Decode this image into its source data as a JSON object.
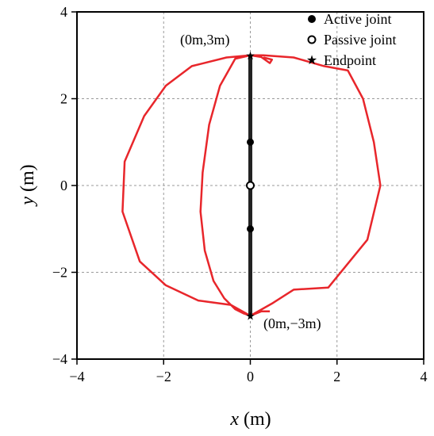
{
  "chart_data": {
    "type": "scatter",
    "title": "",
    "xlabel_var": "x",
    "xlabel_unit": "(m)",
    "ylabel_var": "y",
    "ylabel_unit": "(m)",
    "xlim": [
      -4,
      4
    ],
    "ylim": [
      -4,
      4
    ],
    "xticks": [
      -4,
      -2,
      0,
      2,
      4
    ],
    "yticks": [
      -4,
      -2,
      0,
      2,
      4
    ],
    "tick_labels_x": [
      "−4",
      "−2",
      "0",
      "2",
      "4"
    ],
    "tick_labels_y": [
      "−4",
      "−2",
      "0",
      "2",
      "4"
    ],
    "grid": true,
    "legend_position": "top-right",
    "colors": {
      "trajectory": "#e8262b",
      "link": "#222222",
      "grid": "#9a9a9a"
    },
    "trajectory": {
      "x": [
        0.3,
        0.5,
        0.45,
        0.25,
        0,
        -0.35,
        -0.7,
        -0.95,
        -1.1,
        -1.15,
        -1.05,
        -0.85,
        -0.6,
        -0.35,
        -0.15,
        0,
        0.5,
        1,
        1.8,
        2.7,
        3,
        2.85,
        2.6,
        2.25,
        1.7,
        1,
        0.3,
        0,
        -0.55,
        -1.35,
        -1.95,
        -2.45,
        -2.9,
        -2.95,
        -2.55,
        -1.95,
        -1.2,
        -0.45,
        0,
        0.25,
        0.45
      ],
      "y": [
        2.95,
        2.9,
        2.82,
        2.96,
        3,
        2.92,
        2.3,
        1.4,
        0.3,
        -0.6,
        -1.5,
        -2.2,
        -2.6,
        -2.85,
        -2.95,
        -3,
        -2.72,
        -2.4,
        -2.35,
        -1.25,
        0,
        1,
        2,
        2.65,
        2.75,
        2.95,
        3,
        3,
        2.95,
        2.75,
        2.3,
        1.6,
        0.55,
        -0.6,
        -1.75,
        -2.3,
        -2.65,
        -2.75,
        -3,
        -2.9,
        -2.9
      ]
    },
    "link": {
      "x": [
        0,
        0
      ],
      "y": [
        3,
        -3
      ]
    },
    "active_joints": {
      "x": [
        0,
        0
      ],
      "y": [
        1,
        -1
      ]
    },
    "passive_joints": {
      "x": [
        0
      ],
      "y": [
        0
      ]
    },
    "endpoints": {
      "x": [
        0,
        0
      ],
      "y": [
        3,
        -3
      ]
    },
    "legend": [
      "Active joint",
      "Passive joint",
      "Endpoint"
    ],
    "annotations": [
      {
        "text": "(0m,3m)",
        "x": 0,
        "y": 3
      },
      {
        "text": "(0m,−3m)",
        "x": 0,
        "y": -3
      }
    ]
  }
}
